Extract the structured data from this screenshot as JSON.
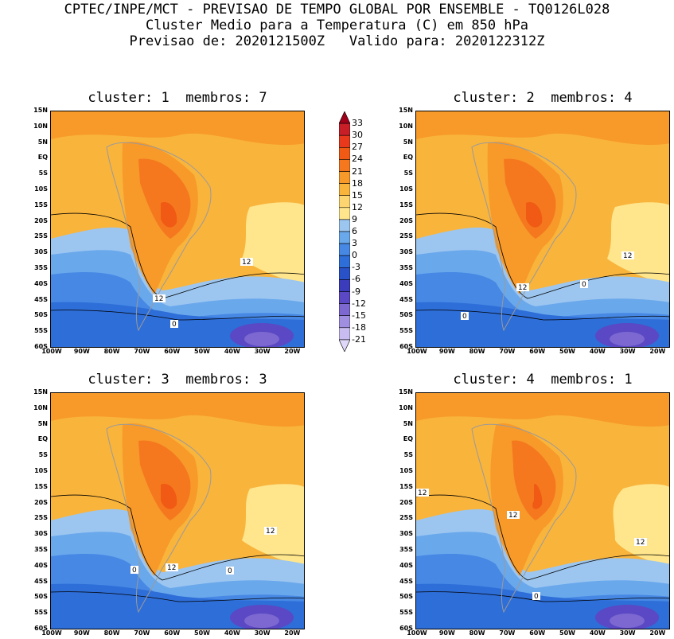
{
  "header": {
    "line1": "CPTEC/INPE/MCT - PREVISAO DE TEMPO GLOBAL POR ENSEMBLE - TQ0126L028",
    "line2": "Cluster Medio para a Temperatura (C) em 850 hPa",
    "line3": "Previsao de: 2020121500Z   Valido para: 2020122312Z"
  },
  "panels": [
    {
      "title": "cluster: 1  membros: 7",
      "contour_labels": [
        "12",
        "12",
        "0"
      ]
    },
    {
      "title": "cluster: 2  membros: 4",
      "contour_labels": [
        "12",
        "12",
        "0",
        "0"
      ]
    },
    {
      "title": "cluster: 3  membros: 3",
      "contour_labels": [
        "12",
        "12",
        "0",
        "0"
      ]
    },
    {
      "title": "cluster: 4  membros: 1",
      "contour_labels": [
        "12",
        "12",
        "12",
        "0"
      ]
    }
  ],
  "map_axes": {
    "lat_labels": [
      "15N",
      "10N",
      "5N",
      "EQ",
      "5S",
      "10S",
      "15S",
      "20S",
      "25S",
      "30S",
      "35S",
      "40S",
      "45S",
      "50S",
      "55S",
      "60S"
    ],
    "lon_labels": [
      "100W",
      "90W",
      "80W",
      "70W",
      "60W",
      "50W",
      "40W",
      "30W",
      "20W"
    ]
  },
  "colorbar": {
    "labels": [
      "33",
      "30",
      "27",
      "24",
      "21",
      "18",
      "15",
      "12",
      "9",
      "6",
      "3",
      "0",
      "-3",
      "-6",
      "-9",
      "-12",
      "-15",
      "-18",
      "-21"
    ],
    "colors": [
      "#a0001a",
      "#c81e28",
      "#e8391c",
      "#f05a14",
      "#f5781e",
      "#f79a2a",
      "#f9b43c",
      "#fcd470",
      "#ffe68c",
      "#9cc6f0",
      "#6aa8ec",
      "#4688e4",
      "#2e6ed8",
      "#2a52c8",
      "#3a3cbc",
      "#5a48c4",
      "#7c68d0",
      "#a08ee0",
      "#c8bcf0",
      "#e0d8f8"
    ]
  }
}
